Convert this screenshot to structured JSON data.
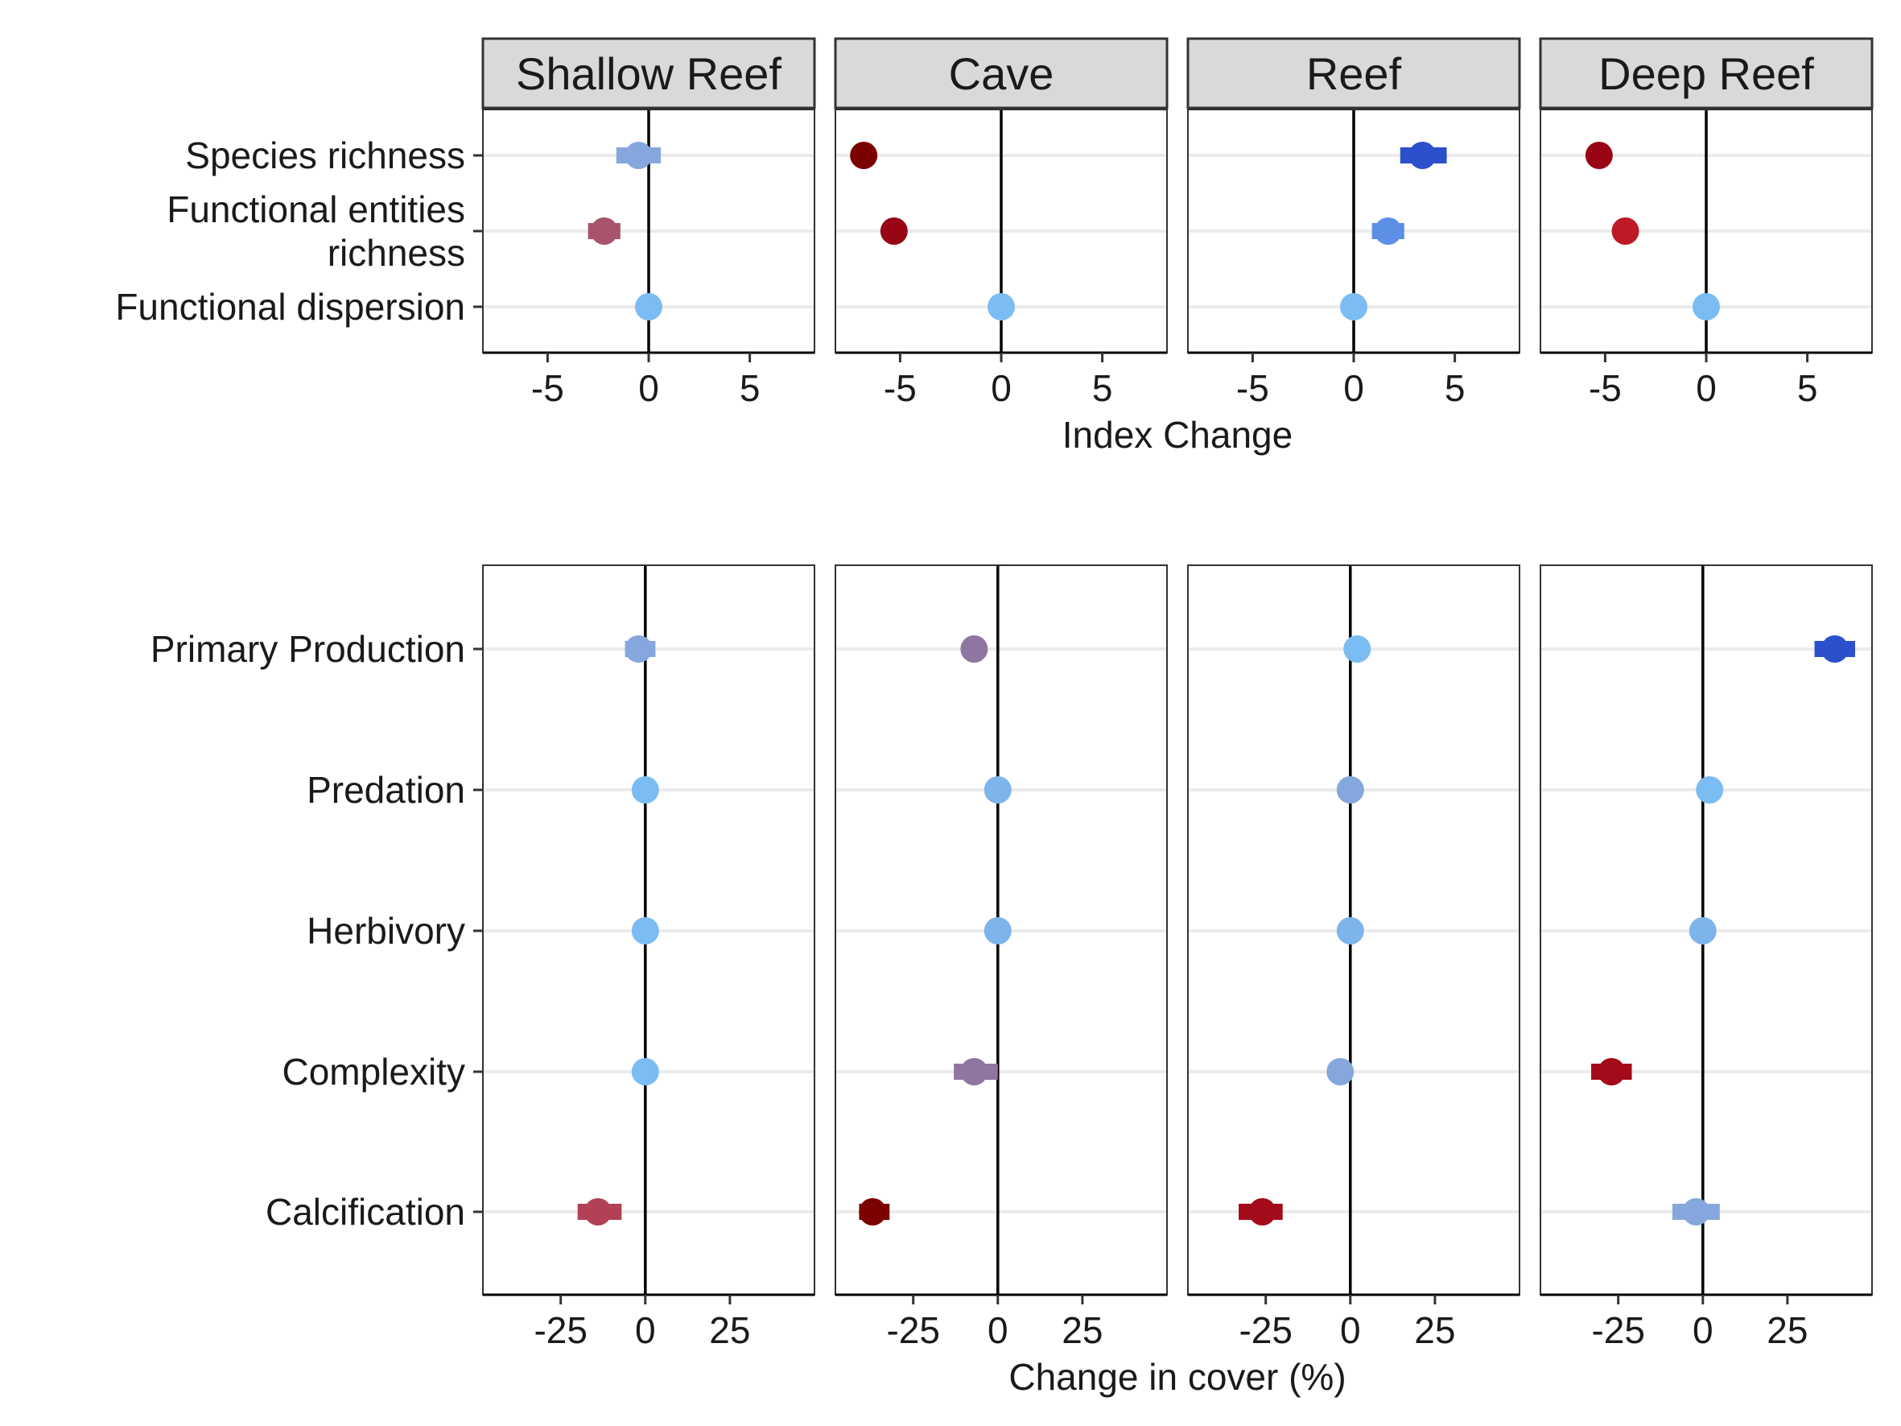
{
  "chart_data": [
    {
      "type": "scatter",
      "panels": [
        "Shallow Reef",
        "Cave",
        "Reef",
        "Deep Reef"
      ],
      "xlabel": "Index Change",
      "ylabel": "",
      "xlim": [
        -8.2,
        8.2
      ],
      "x_ticks": [
        -5,
        0,
        5
      ],
      "x_tick_labels": [
        "-5",
        "0",
        "5"
      ],
      "categories": [
        "Species richness",
        "Functional entities richness",
        "Functional dispersion"
      ],
      "category_labels": [
        [
          "Species richness"
        ],
        [
          "Functional entities",
          "richness"
        ],
        [
          "Functional dispersion"
        ]
      ],
      "grid": "horizontal major only",
      "zero_line": true,
      "points": [
        {
          "panel": "Shallow Reef",
          "category": "Species richness",
          "x": -0.5,
          "xmin": -1.6,
          "xmax": 0.6,
          "color": "#86a7dd"
        },
        {
          "panel": "Shallow Reef",
          "category": "Functional entities richness",
          "x": -2.2,
          "xmin": -3.0,
          "xmax": -1.4,
          "color": "#a8546b"
        },
        {
          "panel": "Shallow Reef",
          "category": "Functional dispersion",
          "x": 0.0,
          "xmin": 0.0,
          "xmax": 0.0,
          "color": "#7bbcf3"
        },
        {
          "panel": "Cave",
          "category": "Species richness",
          "x": -6.8,
          "xmin": -6.8,
          "xmax": -6.8,
          "color": "#7b0000"
        },
        {
          "panel": "Cave",
          "category": "Functional entities richness",
          "x": -5.3,
          "xmin": -5.3,
          "xmax": -5.3,
          "color": "#980515"
        },
        {
          "panel": "Cave",
          "category": "Functional dispersion",
          "x": 0.0,
          "xmin": 0.0,
          "xmax": 0.0,
          "color": "#7bbcf3"
        },
        {
          "panel": "Reef",
          "category": "Species richness",
          "x": 3.4,
          "xmin": 2.3,
          "xmax": 4.6,
          "color": "#2c4fcc"
        },
        {
          "panel": "Reef",
          "category": "Functional entities richness",
          "x": 1.7,
          "xmin": 0.9,
          "xmax": 2.5,
          "color": "#5c8fe6"
        },
        {
          "panel": "Reef",
          "category": "Functional dispersion",
          "x": 0.0,
          "xmin": 0.0,
          "xmax": 0.0,
          "color": "#7bbcf3"
        },
        {
          "panel": "Deep Reef",
          "category": "Species richness",
          "x": -5.3,
          "xmin": -5.8,
          "xmax": -4.8,
          "color": "#980515"
        },
        {
          "panel": "Deep Reef",
          "category": "Functional entities richness",
          "x": -4.0,
          "xmin": -4.0,
          "xmax": -4.0,
          "color": "#bd1a25"
        },
        {
          "panel": "Deep Reef",
          "category": "Functional dispersion",
          "x": 0.0,
          "xmin": 0.0,
          "xmax": 0.0,
          "color": "#7bbcf3"
        }
      ]
    },
    {
      "type": "scatter",
      "panels": [
        "Shallow Reef",
        "Cave",
        "Reef",
        "Deep Reef"
      ],
      "xlabel": "Change in cover (%)",
      "ylabel": "",
      "xlim": [
        -48,
        50
      ],
      "x_ticks": [
        -25,
        0,
        25
      ],
      "x_tick_labels": [
        "-25",
        "0",
        "25"
      ],
      "categories": [
        "Primary Production",
        "Predation",
        "Herbivory",
        "Complexity",
        "Calcification"
      ],
      "category_labels": [
        [
          "Primary Production"
        ],
        [
          "Predation"
        ],
        [
          "Herbivory"
        ],
        [
          "Complexity"
        ],
        [
          "Calcification"
        ]
      ],
      "grid": "horizontal major only",
      "zero_line": true,
      "points": [
        {
          "panel": "Shallow Reef",
          "category": "Primary Production",
          "x": -2,
          "xmin": -6,
          "xmax": 3,
          "color": "#86a7dd"
        },
        {
          "panel": "Shallow Reef",
          "category": "Predation",
          "x": 0,
          "xmin": 0,
          "xmax": 0,
          "color": "#7bbcf3"
        },
        {
          "panel": "Shallow Reef",
          "category": "Herbivory",
          "x": 0,
          "xmin": 0,
          "xmax": 0,
          "color": "#7bbcf3"
        },
        {
          "panel": "Shallow Reef",
          "category": "Complexity",
          "x": 0,
          "xmin": 0,
          "xmax": 0,
          "color": "#7bbcf3"
        },
        {
          "panel": "Shallow Reef",
          "category": "Calcification",
          "x": -14,
          "xmin": -20,
          "xmax": -7,
          "color": "#b24155"
        },
        {
          "panel": "Cave",
          "category": "Primary Production",
          "x": -7,
          "xmin": -9,
          "xmax": -5,
          "color": "#8f76a2"
        },
        {
          "panel": "Cave",
          "category": "Predation",
          "x": 0,
          "xmin": 0,
          "xmax": 0,
          "color": "#7db4ec"
        },
        {
          "panel": "Cave",
          "category": "Herbivory",
          "x": 0,
          "xmin": 0,
          "xmax": 0,
          "color": "#7db4ec"
        },
        {
          "panel": "Cave",
          "category": "Complexity",
          "x": -7,
          "xmin": -13,
          "xmax": 0,
          "color": "#8f76a2"
        },
        {
          "panel": "Cave",
          "category": "Calcification",
          "x": -37,
          "xmin": -41,
          "xmax": -32,
          "color": "#7b0000"
        },
        {
          "panel": "Reef",
          "category": "Primary Production",
          "x": 2,
          "xmin": 0,
          "xmax": 3,
          "color": "#7bbcf3"
        },
        {
          "panel": "Reef",
          "category": "Predation",
          "x": 0,
          "xmin": 0,
          "xmax": 0,
          "color": "#86a7dd"
        },
        {
          "panel": "Reef",
          "category": "Herbivory",
          "x": 0,
          "xmin": 0,
          "xmax": 0,
          "color": "#7db4ec"
        },
        {
          "panel": "Reef",
          "category": "Complexity",
          "x": -3,
          "xmin": -6,
          "xmax": -1,
          "color": "#86a7dd"
        },
        {
          "panel": "Reef",
          "category": "Calcification",
          "x": -26,
          "xmin": -33,
          "xmax": -20,
          "color": "#a30a1a"
        },
        {
          "panel": "Deep Reef",
          "category": "Primary Production",
          "x": 39,
          "xmin": 33,
          "xmax": 45,
          "color": "#2c4fcc"
        },
        {
          "panel": "Deep Reef",
          "category": "Predation",
          "x": 2,
          "xmin": 2,
          "xmax": 2,
          "color": "#7bbcf3"
        },
        {
          "panel": "Deep Reef",
          "category": "Herbivory",
          "x": 0,
          "xmin": 0,
          "xmax": 0,
          "color": "#7db4ec"
        },
        {
          "panel": "Deep Reef",
          "category": "Complexity",
          "x": -27,
          "xmin": -33,
          "xmax": -21,
          "color": "#a30a1a"
        },
        {
          "panel": "Deep Reef",
          "category": "Calcification",
          "x": -2,
          "xmin": -9,
          "xmax": 5,
          "color": "#86a7dd"
        }
      ]
    }
  ]
}
